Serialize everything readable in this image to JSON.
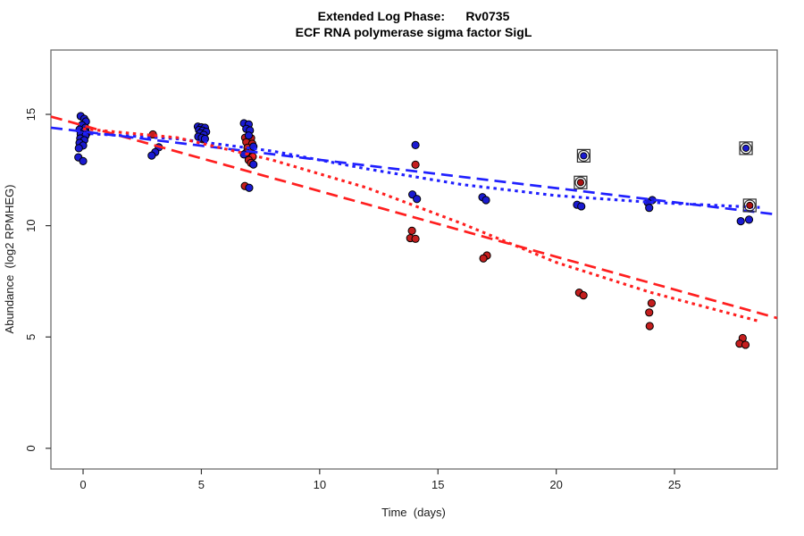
{
  "chart_data": {
    "type": "scatter",
    "title_line1": "Extended Log Phase:      Rv0735",
    "title_line2": "ECF RNA polymerase sigma factor SigL",
    "xlabel": "Time  (days)",
    "ylabel": "Abundance  (log2 RPMHEG)",
    "x_ticks": [
      0,
      5,
      10,
      15,
      20,
      25
    ],
    "y_ticks": [
      0,
      5,
      10,
      15
    ],
    "xlim": [
      -1.36,
      29.34
    ],
    "ylim": [
      -0.93,
      17.89
    ],
    "grid": false,
    "legend": "none",
    "frame_color": "#6e6e6e",
    "series": [
      {
        "name": "red-condition-points",
        "marker": "circle",
        "color": "#c41e1e",
        "edge_color": "#000000",
        "points": [
          [
            0.1,
            14.35
          ],
          [
            0.15,
            14.15
          ],
          [
            2.95,
            14.1
          ],
          [
            5.0,
            14.1
          ],
          [
            5.05,
            13.88
          ],
          [
            6.85,
            13.95
          ],
          [
            7.1,
            13.93
          ],
          [
            6.9,
            13.75
          ],
          [
            7.15,
            13.68
          ],
          [
            6.95,
            13.5
          ],
          [
            7.1,
            13.4
          ],
          [
            6.9,
            13.28
          ],
          [
            7.17,
            13.1
          ],
          [
            7.0,
            12.95
          ],
          [
            7.1,
            12.82
          ],
          [
            6.84,
            11.78
          ],
          [
            14.05,
            12.74
          ],
          [
            13.9,
            9.77
          ],
          [
            13.83,
            9.44
          ],
          [
            14.05,
            9.41
          ],
          [
            17.07,
            8.66
          ],
          [
            16.92,
            8.53
          ],
          [
            20.97,
            6.99
          ],
          [
            21.15,
            6.87
          ],
          [
            24.03,
            6.52
          ],
          [
            23.93,
            6.1
          ],
          [
            23.95,
            5.49
          ],
          [
            27.88,
            4.95
          ],
          [
            27.75,
            4.7
          ],
          [
            28.0,
            4.65
          ]
        ]
      },
      {
        "name": "blue-condition-points",
        "marker": "circle",
        "color": "#1a1ad1",
        "edge_color": "#000000",
        "points": [
          [
            -0.1,
            14.92
          ],
          [
            0.05,
            14.8
          ],
          [
            0.12,
            14.68
          ],
          [
            -0.05,
            14.52
          ],
          [
            0.1,
            14.4
          ],
          [
            -0.15,
            14.32
          ],
          [
            0.05,
            14.24
          ],
          [
            -0.1,
            14.12
          ],
          [
            0.1,
            14.04
          ],
          [
            -0.12,
            13.92
          ],
          [
            0.05,
            13.84
          ],
          [
            -0.15,
            13.72
          ],
          [
            0.0,
            13.6
          ],
          [
            -0.18,
            13.48
          ],
          [
            -0.2,
            13.07
          ],
          [
            0.0,
            12.9
          ],
          [
            3.2,
            13.52
          ],
          [
            3.05,
            13.3
          ],
          [
            2.9,
            13.15
          ],
          [
            4.85,
            14.45
          ],
          [
            5.0,
            14.42
          ],
          [
            5.15,
            14.4
          ],
          [
            4.9,
            14.3
          ],
          [
            5.05,
            14.27
          ],
          [
            5.2,
            14.22
          ],
          [
            4.95,
            14.15
          ],
          [
            5.1,
            14.08
          ],
          [
            4.87,
            14.0
          ],
          [
            5.02,
            13.95
          ],
          [
            5.15,
            13.9
          ],
          [
            6.8,
            14.6
          ],
          [
            7.0,
            14.55
          ],
          [
            6.9,
            14.35
          ],
          [
            7.05,
            14.28
          ],
          [
            7.0,
            14.05
          ],
          [
            7.2,
            13.55
          ],
          [
            6.8,
            13.2
          ],
          [
            7.2,
            12.75
          ],
          [
            7.02,
            11.7
          ],
          [
            14.05,
            13.62
          ],
          [
            13.92,
            11.4
          ],
          [
            14.11,
            11.2
          ],
          [
            16.88,
            11.28
          ],
          [
            17.03,
            11.15
          ],
          [
            20.88,
            10.94
          ],
          [
            21.06,
            10.87
          ],
          [
            24.06,
            11.15
          ],
          [
            23.87,
            11.04
          ],
          [
            23.93,
            10.8
          ],
          [
            27.8,
            10.2
          ],
          [
            28.15,
            10.27
          ]
        ]
      },
      {
        "name": "flagged-blue-points",
        "marker": "circled-square",
        "color": "#1a1ad1",
        "edge_color": "#2b2b2b",
        "points": [
          [
            21.16,
            13.14
          ],
          [
            28.02,
            13.48
          ]
        ]
      },
      {
        "name": "flagged-red-points",
        "marker": "circled-square",
        "color": "#aa1111",
        "edge_color": "#2b2b2b",
        "points": [
          [
            21.03,
            11.94
          ],
          [
            28.18,
            10.91
          ]
        ]
      }
    ],
    "trend_lines": [
      {
        "name": "red-longdash-fit",
        "color": "#ff1f1f",
        "dash": "longdash",
        "points": [
          [
            -1.36,
            14.9
          ],
          [
            29.34,
            5.85
          ]
        ]
      },
      {
        "name": "blue-longdash-fit",
        "color": "#2020ff",
        "dash": "longdash",
        "points": [
          [
            -1.36,
            14.4
          ],
          [
            29.34,
            10.5
          ]
        ]
      },
      {
        "name": "blue-dotted-fit",
        "color": "#2020ff",
        "dash": "dotted",
        "points": [
          [
            0,
            14.15
          ],
          [
            4,
            13.9
          ],
          [
            8,
            13.35
          ],
          [
            12,
            12.55
          ],
          [
            16,
            11.85
          ],
          [
            20,
            11.35
          ],
          [
            24,
            11.05
          ],
          [
            28.6,
            10.82
          ]
        ]
      },
      {
        "name": "red-dotted-fit",
        "color": "#ff1f1f",
        "dash": "dotted",
        "points": [
          [
            0,
            14.35
          ],
          [
            4,
            13.95
          ],
          [
            8,
            12.95
          ],
          [
            12,
            11.7
          ],
          [
            16,
            10.1
          ],
          [
            20,
            8.35
          ],
          [
            24,
            7.0
          ],
          [
            28.6,
            5.7
          ]
        ]
      }
    ]
  }
}
